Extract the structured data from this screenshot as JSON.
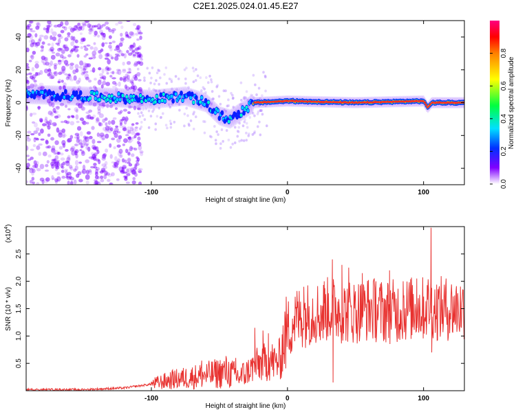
{
  "title": "C2E1.2025.024.01.45.E27",
  "chart_data": [
    {
      "type": "heatmap",
      "xlabel": "Height of straight line (km)",
      "ylabel": "Frequency (Hz)",
      "xlim": [
        -192,
        130
      ],
      "ylim": [
        -50,
        50
      ],
      "x_ticks": [
        "-100",
        "0",
        "100"
      ],
      "y_ticks": [
        "40",
        "20",
        "0",
        "-20",
        "-40"
      ],
      "colorbar": {
        "label": "Normalized spectral amplitude",
        "range": [
          0.0,
          1.0
        ],
        "ticks": [
          "0.0",
          "0.2",
          "0.4",
          "0.6",
          "0.8"
        ]
      },
      "ridge": {
        "x": [
          -190,
          -150,
          -125,
          -100,
          -75,
          -60,
          -50,
          -42,
          -35,
          -28,
          -24,
          0,
          50,
          100,
          103,
          106,
          130
        ],
        "y": [
          5,
          4,
          3,
          2,
          4,
          0,
          -8,
          -10,
          -6,
          -2,
          0,
          1,
          0,
          1,
          -3,
          0,
          0
        ]
      }
    },
    {
      "type": "line",
      "xlabel": "Height of straight line (km)",
      "ylabel": "SNR (10 * v/v)",
      "y_multiplier": "(x10",
      "y_multiplier_exp": "4",
      "y_multiplier_close": ")",
      "xlim": [
        -192,
        130
      ],
      "ylim": [
        0,
        3.0
      ],
      "x_ticks": [
        "-100",
        "0",
        "100"
      ],
      "y_ticks": [
        "0.5",
        "1.0",
        "1.5",
        "2.0",
        "2.5"
      ],
      "color": "#e8312f",
      "envelope": {
        "x": [
          -192,
          -150,
          -120,
          -100,
          -85,
          -70,
          -55,
          -45,
          -35,
          -27,
          -20,
          -12,
          -8,
          -5,
          -3,
          0,
          5,
          10,
          15,
          20,
          25,
          30,
          35,
          40,
          50,
          60,
          70,
          80,
          90,
          100,
          103,
          105,
          108,
          115,
          130
        ],
        "y": [
          0.02,
          0.02,
          0.05,
          0.12,
          0.2,
          0.25,
          0.3,
          0.35,
          0.25,
          0.4,
          0.5,
          0.55,
          0.5,
          0.6,
          0.9,
          1.1,
          1.3,
          1.35,
          1.4,
          1.45,
          1.4,
          1.5,
          1.5,
          1.45,
          1.45,
          1.5,
          1.45,
          1.45,
          1.5,
          1.5,
          1.55,
          1.6,
          1.5,
          1.5,
          1.5
        ]
      },
      "spikes": [
        {
          "x": -84,
          "y": 0.35
        },
        {
          "x": -63,
          "y": 0.55
        },
        {
          "x": -52,
          "y": 0.5
        },
        {
          "x": -38,
          "y": 0.6
        },
        {
          "x": -24,
          "y": 1.15
        },
        {
          "x": -18,
          "y": 1.1
        },
        {
          "x": -14,
          "y": 1.05
        },
        {
          "x": 12,
          "y": 1.9
        },
        {
          "x": 27,
          "y": 2.0
        },
        {
          "x": 33,
          "y": 2.4
        },
        {
          "x": 33.5,
          "y": 0.15
        },
        {
          "x": 40,
          "y": 2.3
        },
        {
          "x": 45,
          "y": 2.25
        },
        {
          "x": 55,
          "y": 2.15
        },
        {
          "x": 65,
          "y": 2.0
        },
        {
          "x": 75,
          "y": 2.2
        },
        {
          "x": 85,
          "y": 2.0
        },
        {
          "x": 95,
          "y": 2.05
        },
        {
          "x": 105.5,
          "y": 2.98
        },
        {
          "x": 106,
          "y": 0.7
        },
        {
          "x": 125,
          "y": 1.75
        }
      ]
    }
  ]
}
